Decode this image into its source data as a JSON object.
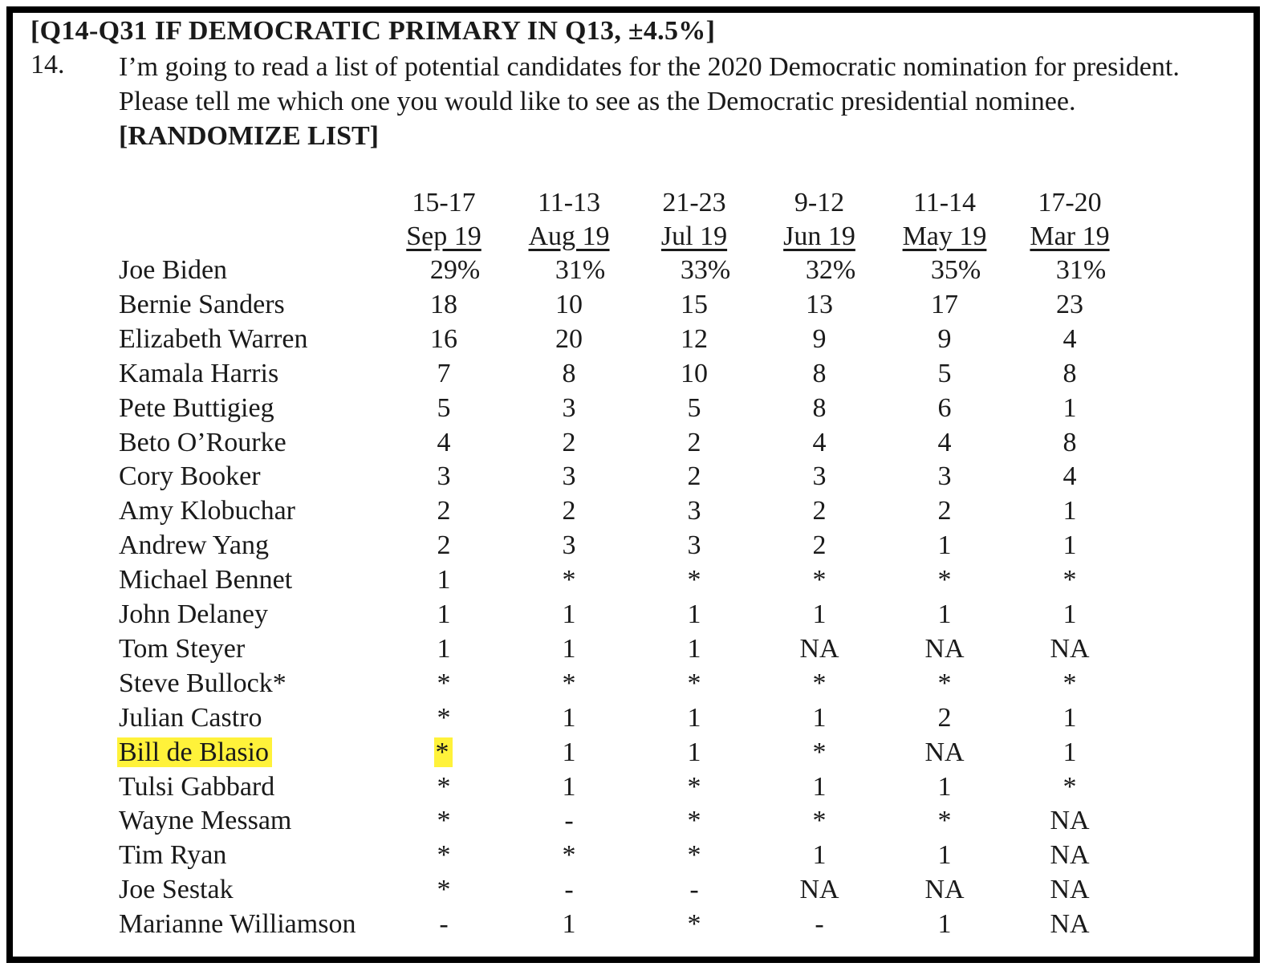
{
  "document": {
    "header": "[Q14-Q31 IF DEMOCRATIC PRIMARY IN Q13, ±4.5%]",
    "question_number": "14.",
    "question_text": "I’m going to read a list of potential candidates for the 2020 Democratic nomination for president.  Please tell me which one you would like to see as the Democratic presidential nominee.",
    "instruction": "[RANDOMIZE LIST]"
  },
  "table": {
    "columns": [
      {
        "days": "15-17",
        "month": "Sep 19"
      },
      {
        "days": "11-13",
        "month": "Aug 19"
      },
      {
        "days": "21-23",
        "month": "Jul 19"
      },
      {
        "days": "9-12",
        "month": "Jun 19"
      },
      {
        "days": "11-14",
        "month": "May 19"
      },
      {
        "days": "17-20",
        "month": "Mar 19"
      }
    ],
    "rows": [
      {
        "name": "Joe Biden",
        "values": [
          "29%",
          "31%",
          "33%",
          "32%",
          "35%",
          "31%"
        ]
      },
      {
        "name": "Bernie Sanders",
        "values": [
          "18",
          "10",
          "15",
          "13",
          "17",
          "23"
        ]
      },
      {
        "name": "Elizabeth Warren",
        "values": [
          "16",
          "20",
          "12",
          "9",
          "9",
          "4"
        ]
      },
      {
        "name": "Kamala Harris",
        "values": [
          "7",
          "8",
          "10",
          "8",
          "5",
          "8"
        ]
      },
      {
        "name": "Pete Buttigieg",
        "values": [
          "5",
          "3",
          "5",
          "8",
          "6",
          "1"
        ]
      },
      {
        "name": "Beto O’Rourke",
        "values": [
          "4",
          "2",
          "2",
          "4",
          "4",
          "8"
        ]
      },
      {
        "name": "Cory Booker",
        "values": [
          "3",
          "3",
          "2",
          "3",
          "3",
          "4"
        ]
      },
      {
        "name": "Amy Klobuchar",
        "values": [
          "2",
          "2",
          "3",
          "2",
          "2",
          "1"
        ]
      },
      {
        "name": "Andrew Yang",
        "values": [
          "2",
          "3",
          "3",
          "2",
          "1",
          "1"
        ]
      },
      {
        "name": "Michael Bennet",
        "values": [
          "1",
          "*",
          "*",
          "*",
          "*",
          "*"
        ]
      },
      {
        "name": "John Delaney",
        "values": [
          "1",
          "1",
          "1",
          "1",
          "1",
          "1"
        ]
      },
      {
        "name": "Tom Steyer",
        "values": [
          "1",
          "1",
          "1",
          "NA",
          "NA",
          "NA"
        ]
      },
      {
        "name": "Steve Bullock*",
        "values": [
          "*",
          "*",
          "*",
          "*",
          "*",
          "*"
        ]
      },
      {
        "name": "Julian Castro",
        "values": [
          "*",
          "1",
          "1",
          "1",
          "2",
          "1"
        ]
      },
      {
        "name": "Bill de Blasio",
        "values": [
          "*",
          "1",
          "1",
          "*",
          "NA",
          "1"
        ],
        "highlighted": true
      },
      {
        "name": "Tulsi Gabbard",
        "values": [
          "*",
          "1",
          "*",
          "1",
          "1",
          "*"
        ]
      },
      {
        "name": "Wayne Messam",
        "values": [
          "*",
          "-",
          "*",
          "*",
          "*",
          "NA"
        ]
      },
      {
        "name": "Tim Ryan",
        "values": [
          "*",
          "*",
          "*",
          "1",
          "1",
          "NA"
        ]
      },
      {
        "name": "Joe Sestak",
        "values": [
          "*",
          "-",
          "-",
          "NA",
          "NA",
          "NA"
        ]
      },
      {
        "name": "Marianne Williamson",
        "values": [
          "-",
          "1",
          "*",
          "-",
          "1",
          "NA"
        ]
      }
    ]
  },
  "colors": {
    "highlight": "#fff23a",
    "border": "#000000",
    "text": "#1a1a1a"
  }
}
